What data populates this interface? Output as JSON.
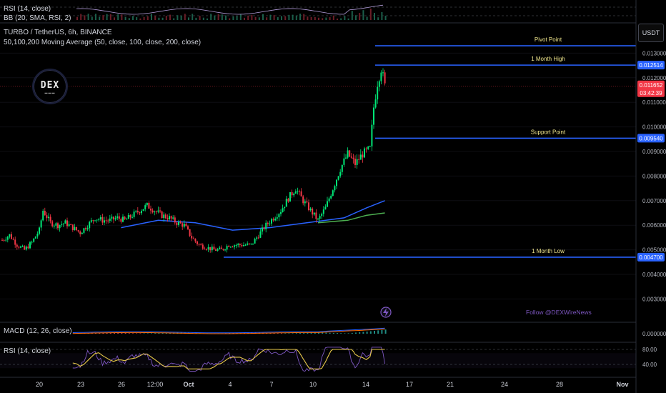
{
  "header": {
    "symbol": "TURBO / TetherUS, 6h, BINANCE",
    "ma_indicator": "50,100,200 Moving Average (50, close, 100, close, 200, close)",
    "top_rsi_label": "RSI (14, close)",
    "top_bb_label": "BB (20, SMA, RSI, 2)",
    "currency_button": "USDT"
  },
  "logo": {
    "text": "DEX"
  },
  "follow_text": "Follow @DEXWireNews",
  "colors": {
    "up": "#00e676",
    "down": "#f23645",
    "level_line": "#2962ff",
    "level_text": "#f0e68c",
    "ma_fast": "#2962ff",
    "ma_slow": "#4caf50",
    "rsi": "#7e57c2",
    "rsi_signal": "#e6c84a",
    "follow": "#7e57c2"
  },
  "levels": [
    {
      "name": "Pivot Point",
      "price": 0.0133,
      "tag": ""
    },
    {
      "name": "1 Month High",
      "price": 0.012514,
      "tag": "0.012514"
    },
    {
      "name": "Support Point",
      "price": 0.00954,
      "tag": "0.009540"
    },
    {
      "name": "1 Month Low",
      "price": 0.0047,
      "tag": "0.004700"
    }
  ],
  "current_price": {
    "value": "0.011652",
    "countdown": "03:42:39"
  },
  "chart_data": {
    "type": "candlestick",
    "symbol": "TURBO/USDT",
    "timeframe": "6h",
    "y_ticks": [
      "0.013000",
      "0.012000",
      "0.011000",
      "0.010000",
      "0.009000",
      "0.008000",
      "0.007000",
      "0.006000",
      "0.005000",
      "0.004000",
      "0.003000"
    ],
    "x_ticks": [
      "20",
      "23",
      "26",
      "12:00",
      "Oct",
      "4",
      "7",
      "10",
      "14",
      "17",
      "21",
      "24",
      "28",
      "Nov"
    ],
    "ylim": [
      0.0023,
      0.0138
    ],
    "close_path": [
      [
        0,
        0.0054
      ],
      [
        4,
        0.0056
      ],
      [
        8,
        0.0052
      ],
      [
        12,
        0.005
      ],
      [
        16,
        0.0053
      ],
      [
        20,
        0.0058
      ],
      [
        22,
        0.0066
      ],
      [
        26,
        0.0061
      ],
      [
        30,
        0.006
      ],
      [
        34,
        0.0061
      ],
      [
        38,
        0.0059
      ],
      [
        42,
        0.0057
      ],
      [
        46,
        0.006
      ],
      [
        50,
        0.0063
      ],
      [
        54,
        0.0062
      ],
      [
        58,
        0.0062
      ],
      [
        62,
        0.0063
      ],
      [
        66,
        0.0062
      ],
      [
        70,
        0.0064
      ],
      [
        74,
        0.0066
      ],
      [
        78,
        0.0068
      ],
      [
        82,
        0.0066
      ],
      [
        86,
        0.0064
      ],
      [
        90,
        0.0063
      ],
      [
        94,
        0.0061
      ],
      [
        98,
        0.006
      ],
      [
        102,
        0.0055
      ],
      [
        106,
        0.0052
      ],
      [
        110,
        0.0051
      ],
      [
        114,
        0.005
      ],
      [
        118,
        0.005
      ],
      [
        122,
        0.0052
      ],
      [
        126,
        0.0052
      ],
      [
        130,
        0.0052
      ],
      [
        134,
        0.0052
      ],
      [
        138,
        0.0056
      ],
      [
        142,
        0.006
      ],
      [
        146,
        0.0063
      ],
      [
        150,
        0.0066
      ],
      [
        154,
        0.0071
      ],
      [
        158,
        0.0075
      ],
      [
        162,
        0.007
      ],
      [
        166,
        0.0066
      ],
      [
        170,
        0.0062
      ],
      [
        174,
        0.0067
      ],
      [
        178,
        0.0075
      ],
      [
        182,
        0.0083
      ],
      [
        186,
        0.0089
      ],
      [
        190,
        0.0085
      ],
      [
        194,
        0.0089
      ],
      [
        198,
        0.0091
      ],
      [
        200,
        0.0108
      ],
      [
        202,
        0.0118
      ],
      [
        204,
        0.0124
      ],
      [
        206,
        0.01165
      ]
    ],
    "ma_fast": [
      [
        64,
        0.0059
      ],
      [
        84,
        0.0062
      ],
      [
        104,
        0.0061
      ],
      [
        124,
        0.0058
      ],
      [
        144,
        0.0059
      ],
      [
        164,
        0.0061
      ],
      [
        184,
        0.0063
      ],
      [
        196,
        0.0067
      ],
      [
        206,
        0.007
      ]
    ],
    "ma_slow": [
      [
        170,
        0.0061
      ],
      [
        186,
        0.0062
      ],
      [
        196,
        0.0064
      ],
      [
        206,
        0.0065
      ]
    ],
    "macd": {
      "label": "MACD (12, 26, close)",
      "tick": "0.000000"
    },
    "rsi": {
      "label": "RSI (14, close)",
      "ticks": [
        "80.00",
        "40.00"
      ]
    }
  }
}
